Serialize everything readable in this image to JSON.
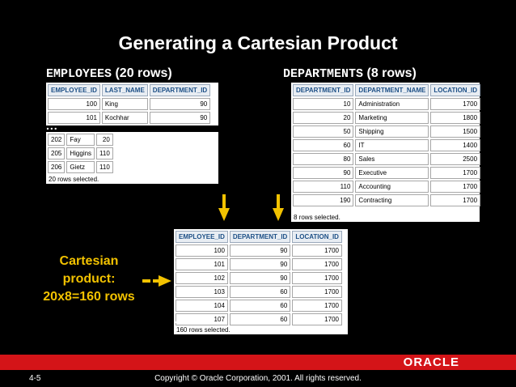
{
  "title": "Generating a Cartesian Product",
  "employees": {
    "caption_name": "EMPLOYEES",
    "caption_rows": "(20 rows)",
    "columns": [
      "EMPLOYEE_ID",
      "LAST_NAME",
      "DEPARTMENT_ID"
    ],
    "rows_top": [
      [
        "100",
        "King",
        "90"
      ],
      [
        "101",
        "Kochhar",
        "90"
      ]
    ],
    "ellipsis": "...",
    "rows_bottom": [
      [
        "202",
        "Fay",
        "20"
      ],
      [
        "205",
        "Higgins",
        "110"
      ],
      [
        "206",
        "Gietz",
        "110"
      ]
    ],
    "footer": "20 rows selected."
  },
  "departments": {
    "caption_name": "DEPARTMENTS",
    "caption_rows": "(8 rows)",
    "columns": [
      "DEPARTMENT_ID",
      "DEPARTMENT_NAME",
      "LOCATION_ID"
    ],
    "rows": [
      [
        "10",
        "Administration",
        "1700"
      ],
      [
        "20",
        "Marketing",
        "1800"
      ],
      [
        "50",
        "Shipping",
        "1500"
      ],
      [
        "60",
        "IT",
        "1400"
      ],
      [
        "80",
        "Sales",
        "2500"
      ],
      [
        "90",
        "Executive",
        "1700"
      ],
      [
        "110",
        "Accounting",
        "1700"
      ],
      [
        "190",
        "Contracting",
        "1700"
      ]
    ],
    "footer": "8 rows selected."
  },
  "result": {
    "columns": [
      "EMPLOYEE_ID",
      "DEPARTMENT_ID",
      "LOCATION_ID"
    ],
    "rows": [
      [
        "100",
        "90",
        "1700"
      ],
      [
        "101",
        "90",
        "1700"
      ],
      [
        "102",
        "90",
        "1700"
      ],
      [
        "103",
        "60",
        "1700"
      ],
      [
        "104",
        "60",
        "1700"
      ],
      [
        "107",
        "60",
        "1700"
      ]
    ],
    "ellipsis": "...",
    "footer": "160 rows selected."
  },
  "cartesian_label": [
    "Cartesian",
    "product:",
    "20x8=160 rows"
  ],
  "footer": {
    "page": "4-5",
    "copyright": "Copyright © Oracle Corporation, 2001. All rights reserved.",
    "logo": "ORACLE"
  },
  "colors": {
    "accent": "#f2c200",
    "brand": "#d41418",
    "header_text": "#1c4f86"
  }
}
